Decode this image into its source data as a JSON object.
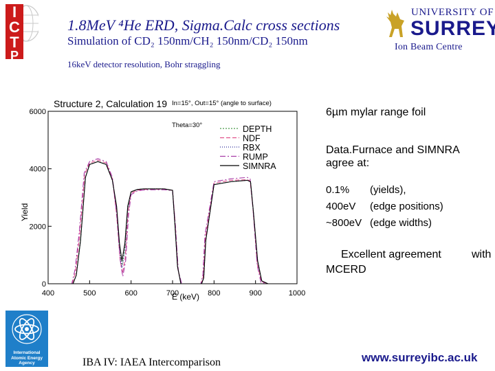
{
  "header": {
    "title": "1.8MeV ⁴He ERD, Sigma.Calc cross sections",
    "subtitle": "Simulation of CD₂ 150nm/CH₂ 150nm/CD₂ 150nm",
    "detector": "16keV detector resolution, Bohr straggling",
    "ictp_letters": [
      "I",
      "C",
      "T",
      "P"
    ],
    "university_of": "UNIVERSITY OF",
    "university_name": "SURREY",
    "centre": "Ion Beam Centre"
  },
  "right_panel": {
    "foil": "6µm mylar range foil",
    "agree_intro": "Data.Furnace and SIMNRA agree at:",
    "agreements": [
      {
        "value": "0.1%",
        "desc": "(yields),"
      },
      {
        "value": "400eV",
        "desc": "(edge positions)"
      },
      {
        "value": "~800eV",
        "desc": "(edge widths)"
      }
    ],
    "mcerd_line1": "Excellent agreement",
    "mcerd_with": "with",
    "mcerd_line2": "MCERD"
  },
  "footer": {
    "left": "IBA IV: IAEA Intercomparison",
    "right": "www.surreyibc.ac.uk",
    "iaea_logo_text": "International Atomic Energy Agency"
  },
  "colors": {
    "header_text": "#1a1a8c",
    "ictp_red": "#cc1b1b",
    "iaea_blue": "#1f7fc9"
  },
  "chart_data": {
    "type": "line",
    "title": "Structure 2, Calculation 19",
    "annotation_top": "In=15°, Out=15° (angle to surface)",
    "annotation_theta": "Theta=30°",
    "xlabel": "E (keV)",
    "ylabel": "Yield",
    "xlim": [
      400,
      1000
    ],
    "ylim": [
      0,
      6000
    ],
    "xticks": [
      400,
      500,
      600,
      700,
      800,
      900,
      1000
    ],
    "yticks": [
      0,
      2000,
      4000,
      6000
    ],
    "ytick_labels": [
      "0",
      "2000",
      "4000",
      "6000"
    ],
    "legend_position": "top-right",
    "series": [
      {
        "name": "DEPTH",
        "color": "#4a9a4a",
        "dash": "2,2",
        "x": [
          400,
          440,
          460,
          468,
          478,
          490,
          500,
          520,
          540,
          555,
          565,
          572,
          578,
          585,
          592,
          600,
          615,
          630,
          650,
          680,
          700,
          706,
          712,
          720,
          760,
          770,
          775,
          780,
          800,
          840,
          880,
          888,
          895,
          905,
          915,
          930,
          1000
        ],
        "y": [
          0,
          0,
          0,
          300,
          1500,
          3700,
          4150,
          4250,
          4150,
          3600,
          2600,
          1200,
          600,
          1200,
          2600,
          3200,
          3280,
          3300,
          3300,
          3300,
          3250,
          2000,
          600,
          0,
          0,
          0,
          200,
          1500,
          3450,
          3550,
          3600,
          3550,
          2500,
          800,
          100,
          0,
          0
        ]
      },
      {
        "name": "NDF",
        "color": "#e0508a",
        "dash": "6,3",
        "x": [
          400,
          440,
          458,
          466,
          476,
          488,
          500,
          520,
          540,
          555,
          565,
          573,
          579,
          586,
          593,
          600,
          615,
          630,
          650,
          680,
          700,
          707,
          713,
          721,
          760,
          769,
          774,
          779,
          800,
          840,
          880,
          887,
          894,
          904,
          914,
          930,
          1000
        ],
        "y": [
          0,
          0,
          0,
          400,
          1700,
          3800,
          4200,
          4300,
          4200,
          3650,
          2400,
          900,
          350,
          900,
          2500,
          3150,
          3250,
          3280,
          3290,
          3290,
          3250,
          2000,
          500,
          0,
          0,
          0,
          250,
          1600,
          3500,
          3600,
          3620,
          3580,
          2600,
          700,
          80,
          0,
          0
        ]
      },
      {
        "name": "RBX",
        "color": "#2a2a9a",
        "dash": "1,2",
        "x": [
          400,
          440,
          460,
          468,
          478,
          490,
          500,
          520,
          540,
          555,
          565,
          572,
          578,
          585,
          592,
          600,
          615,
          630,
          650,
          680,
          700,
          706,
          712,
          720,
          760,
          770,
          775,
          780,
          800,
          840,
          880,
          888,
          895,
          905,
          915,
          930,
          1000
        ],
        "y": [
          0,
          0,
          0,
          300,
          1500,
          3700,
          4150,
          4250,
          4150,
          3600,
          2600,
          1150,
          550,
          1150,
          2600,
          3200,
          3280,
          3300,
          3300,
          3300,
          3250,
          2000,
          600,
          0,
          0,
          0,
          200,
          1500,
          3450,
          3550,
          3600,
          3550,
          2500,
          800,
          100,
          0,
          0
        ]
      },
      {
        "name": "RUMP",
        "color": "#a63aa6",
        "dash": "8,3,2,3",
        "x": [
          400,
          440,
          457,
          465,
          475,
          487,
          500,
          520,
          540,
          555,
          566,
          574,
          580,
          587,
          594,
          600,
          615,
          630,
          650,
          680,
          700,
          707,
          714,
          722,
          760,
          768,
          773,
          778,
          800,
          840,
          880,
          887,
          894,
          904,
          913,
          930,
          1000
        ],
        "y": [
          0,
          0,
          0,
          500,
          1800,
          3850,
          4250,
          4350,
          4250,
          3700,
          2300,
          800,
          250,
          800,
          2400,
          3100,
          3230,
          3260,
          3270,
          3270,
          3240,
          2000,
          450,
          0,
          0,
          0,
          300,
          1700,
          3550,
          3650,
          3700,
          3650,
          2600,
          650,
          50,
          0,
          0
        ]
      },
      {
        "name": "SIMNRA",
        "color": "#000000",
        "dash": "",
        "x": [
          400,
          440,
          460,
          468,
          478,
          490,
          500,
          520,
          540,
          555,
          565,
          572,
          578,
          585,
          592,
          600,
          615,
          630,
          650,
          680,
          700,
          706,
          712,
          720,
          760,
          770,
          775,
          780,
          800,
          840,
          880,
          888,
          895,
          905,
          915,
          930,
          1000
        ],
        "y": [
          0,
          0,
          0,
          300,
          1500,
          3700,
          4150,
          4250,
          4150,
          3600,
          2700,
          1400,
          800,
          1400,
          2700,
          3200,
          3280,
          3300,
          3300,
          3300,
          3250,
          2000,
          600,
          0,
          0,
          0,
          200,
          1500,
          3450,
          3550,
          3600,
          3550,
          2500,
          800,
          100,
          0,
          0
        ]
      }
    ]
  }
}
